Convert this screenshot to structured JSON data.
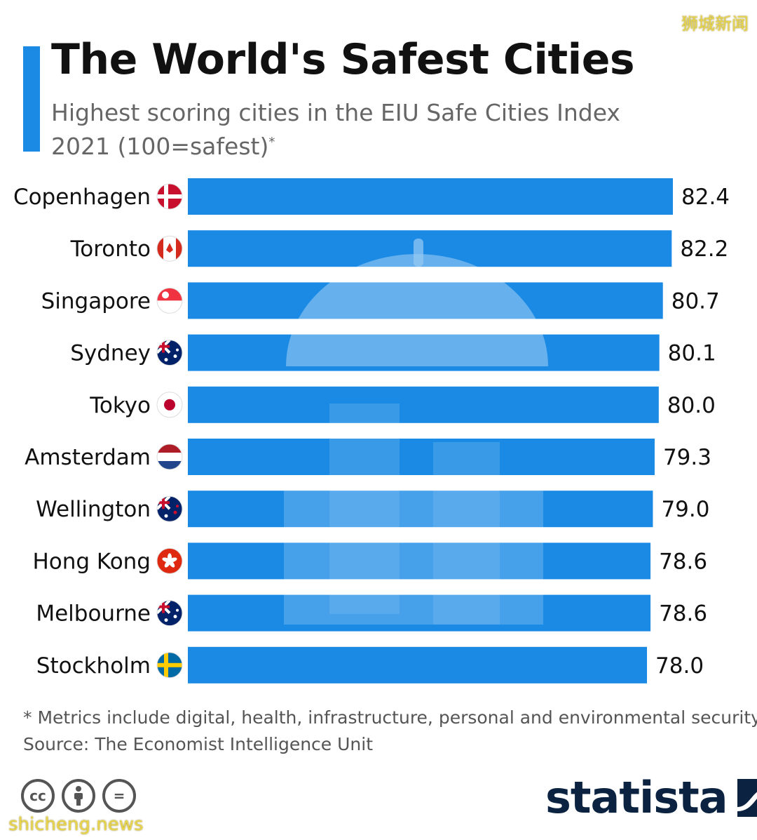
{
  "header": {
    "title": "The World's Safest Cities",
    "subtitle": "Highest scoring cities in the EIU Safe Cities Index 2021 (100=safest)",
    "subtitle_mark": "*"
  },
  "watermark_top": "狮城新闻",
  "watermark_bottom": "shicheng.news",
  "footnote": "* Metrics include digital, health, infrastructure, personal and environmental security.",
  "source": "Source: The Economist Intelligence Unit",
  "brand": "statista",
  "license_icons": [
    "cc-icon",
    "by-icon",
    "nd-icon"
  ],
  "colors": {
    "bar": "#1a8ae5",
    "accent": "#1a8ae5",
    "brand": "#0b2340"
  },
  "chart_data": {
    "type": "bar",
    "orientation": "horizontal",
    "categories": [
      "Copenhagen",
      "Toronto",
      "Singapore",
      "Sydney",
      "Tokyo",
      "Amsterdam",
      "Wellington",
      "Hong Kong",
      "Melbourne",
      "Stockholm"
    ],
    "values": [
      82.4,
      82.2,
      80.7,
      80.1,
      80.0,
      79.3,
      79.0,
      78.6,
      78.6,
      78.0
    ],
    "value_labels": [
      "82.4",
      "82.2",
      "80.7",
      "80.1",
      "80.0",
      "79.3",
      "79.0",
      "78.6",
      "78.6",
      "78.0"
    ],
    "flag_icons": [
      "denmark-flag-icon",
      "canada-flag-icon",
      "singapore-flag-icon",
      "australia-flag-icon",
      "japan-flag-icon",
      "netherlands-flag-icon",
      "new-zealand-flag-icon",
      "hong-kong-flag-icon",
      "australia-flag-icon",
      "sweden-flag-icon"
    ],
    "grid": false,
    "legend": "none"
  }
}
